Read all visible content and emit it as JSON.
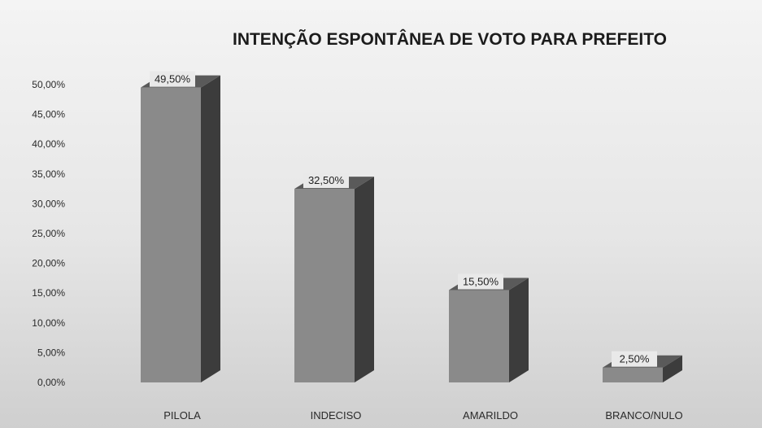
{
  "chart_data": {
    "type": "bar",
    "title": "INTENÇÃO ESPONTÂNEA DE VOTO PARA PREFEITO",
    "categories": [
      "PILOLA",
      "INDECISO",
      "AMARILDO",
      "BRANCO/NULO"
    ],
    "values": [
      49.5,
      32.5,
      15.5,
      2.5
    ],
    "data_labels": [
      "49,50%",
      "32,50%",
      "15,50%",
      "2,50%"
    ],
    "y_tick_labels": [
      "0,00%",
      "5,00%",
      "10,00%",
      "15,00%",
      "20,00%",
      "25,00%",
      "30,00%",
      "35,00%",
      "40,00%",
      "45,00%",
      "50,00%"
    ],
    "ylim": [
      0,
      50
    ],
    "xlabel": "",
    "ylabel": "",
    "grid": false,
    "legend": "none",
    "style": "3d-column",
    "colors": {
      "bar_front": "#8a8a8a",
      "bar_side": "#3c3c3c",
      "bar_top": "#5a5a5a",
      "label_bg": "#e9e9e9"
    }
  }
}
